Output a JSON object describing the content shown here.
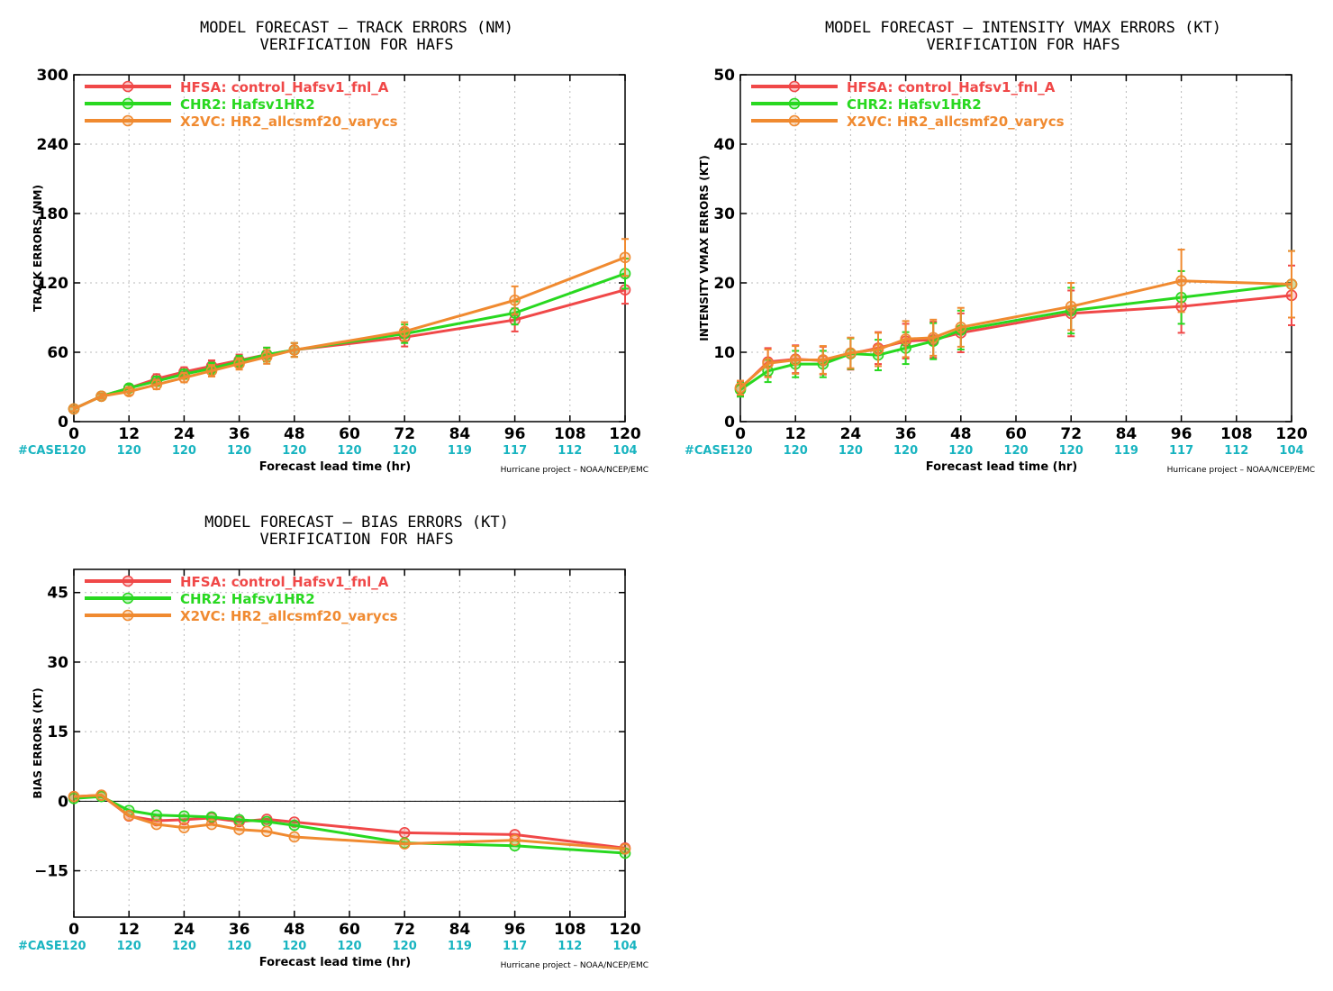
{
  "colors": {
    "HFSA": "#f04848",
    "CHR2": "#28d820",
    "X2VC": "#f08a30",
    "case": "#18b4c0"
  },
  "chart_data": [
    {
      "type": "line",
      "title": "MODEL FORECAST – TRACK ERRORS (NM)",
      "subtitle": "VERIFICATION FOR HAFS",
      "xlabel": "Forecast lead time (hr)",
      "ylabel": "TRACK ERRORS (NM)",
      "xlim": [
        0,
        120
      ],
      "ylim": [
        0,
        300
      ],
      "xticks": [
        0,
        12,
        24,
        36,
        48,
        60,
        72,
        84,
        96,
        108,
        120
      ],
      "yticks": [
        0,
        60,
        120,
        180,
        240,
        300
      ],
      "grid": true,
      "error_bars": true,
      "legend_position": "top-left",
      "case_label": "#CASE",
      "case_counts": [
        "120",
        "120",
        "120",
        "120",
        "120",
        "120",
        "120",
        "119",
        "117",
        "112",
        "104"
      ],
      "credit": "Hurricane project – NOAA/NCEP/EMC",
      "x": [
        0,
        6,
        12,
        18,
        24,
        30,
        36,
        42,
        48,
        72,
        96,
        120
      ],
      "series": [
        {
          "key": "HFSA",
          "name": "HFSA: control_Hafsv1_fnl_A",
          "values": [
            11,
            22,
            29,
            37,
            43,
            48,
            53,
            58,
            62,
            73,
            88,
            114
          ],
          "err": [
            2,
            2,
            3,
            4,
            4,
            5,
            5,
            6,
            6,
            8,
            10,
            12
          ]
        },
        {
          "key": "CHR2",
          "name": "CHR2: Hafsv1HR2",
          "values": [
            11,
            22,
            29,
            35,
            41,
            46,
            52,
            58,
            62,
            76,
            94,
            128
          ],
          "err": [
            2,
            2,
            3,
            4,
            4,
            5,
            5,
            6,
            6,
            8,
            10,
            13
          ]
        },
        {
          "key": "X2VC",
          "name": "X2VC: HR2_allcsmf20_varycs",
          "values": [
            11,
            22,
            26,
            32,
            38,
            44,
            50,
            56,
            62,
            78,
            105,
            142
          ],
          "err": [
            2,
            2,
            3,
            4,
            4,
            5,
            5,
            6,
            6,
            8,
            12,
            16
          ]
        }
      ]
    },
    {
      "type": "line",
      "title": "MODEL FORECAST – INTENSITY VMAX ERRORS (KT)",
      "subtitle": "VERIFICATION FOR HAFS",
      "xlabel": "Forecast lead time (hr)",
      "ylabel": "INTENSITY VMAX ERRORS (KT)",
      "xlim": [
        0,
        120
      ],
      "ylim": [
        0,
        50
      ],
      "xticks": [
        0,
        12,
        24,
        36,
        48,
        60,
        72,
        84,
        96,
        108,
        120
      ],
      "yticks": [
        0,
        10,
        20,
        30,
        40,
        50
      ],
      "grid": true,
      "error_bars": true,
      "legend_position": "top-left",
      "case_label": "#CASE",
      "case_counts": [
        "120",
        "120",
        "120",
        "120",
        "120",
        "120",
        "120",
        "119",
        "117",
        "112",
        "104"
      ],
      "credit": "Hurricane project – NOAA/NCEP/EMC",
      "x": [
        0,
        6,
        12,
        18,
        24,
        30,
        36,
        42,
        48,
        72,
        96,
        120
      ],
      "series": [
        {
          "key": "HFSA",
          "name": "HFSA: control_Hafsv1_fnl_A",
          "values": [
            4.8,
            8.6,
            9.0,
            8.8,
            9.8,
            10.6,
            11.6,
            11.8,
            12.8,
            15.6,
            16.6,
            18.2
          ],
          "err": [
            1.0,
            2.0,
            2.0,
            2.0,
            2.3,
            2.3,
            2.5,
            2.6,
            2.8,
            3.3,
            3.8,
            4.3
          ]
        },
        {
          "key": "CHR2",
          "name": "CHR2: Hafsv1HR2",
          "values": [
            4.6,
            7.3,
            8.3,
            8.3,
            9.8,
            9.6,
            10.6,
            11.6,
            13.2,
            16.0,
            17.9,
            19.8
          ],
          "err": [
            1.0,
            1.6,
            1.9,
            1.9,
            2.2,
            2.2,
            2.3,
            2.6,
            2.8,
            3.3,
            3.8,
            4.8
          ]
        },
        {
          "key": "X2VC",
          "name": "X2VC: HR2_allcsmf20_varycs",
          "values": [
            4.9,
            8.4,
            8.9,
            8.9,
            9.9,
            10.4,
            11.9,
            12.1,
            13.6,
            16.6,
            20.3,
            19.8
          ],
          "err": [
            1.0,
            2.0,
            2.0,
            2.0,
            2.2,
            2.4,
            2.6,
            2.6,
            2.8,
            3.4,
            4.5,
            4.8
          ]
        }
      ]
    },
    {
      "type": "line",
      "title": "MODEL FORECAST – BIAS ERRORS (KT)",
      "subtitle": "VERIFICATION FOR HAFS",
      "xlabel": "Forecast lead time (hr)",
      "ylabel": "BIAS ERRORS (KT)",
      "xlim": [
        0,
        120
      ],
      "ylim": [
        -25,
        50
      ],
      "xticks": [
        0,
        12,
        24,
        36,
        48,
        60,
        72,
        84,
        96,
        108,
        120
      ],
      "yticks": [
        -15,
        0,
        15,
        30,
        45
      ],
      "grid": true,
      "error_bars": false,
      "zero_line": true,
      "legend_position": "top-left",
      "case_label": "#CASE",
      "case_counts": [
        "120",
        "120",
        "120",
        "120",
        "120",
        "120",
        "120",
        "119",
        "117",
        "112",
        "104"
      ],
      "credit": "Hurricane project – NOAA/NCEP/EMC",
      "x": [
        0,
        6,
        12,
        18,
        24,
        30,
        36,
        42,
        48,
        72,
        96,
        120
      ],
      "series": [
        {
          "key": "HFSA",
          "name": "HFSA: control_Hafsv1_fnl_A",
          "values": [
            1.0,
            1.3,
            -3.2,
            -4.2,
            -4.0,
            -3.6,
            -4.4,
            -3.9,
            -4.5,
            -6.8,
            -7.2,
            -10.1
          ]
        },
        {
          "key": "CHR2",
          "name": "CHR2: Hafsv1HR2",
          "values": [
            0.6,
            1.0,
            -2.0,
            -3.0,
            -3.2,
            -3.4,
            -4.0,
            -4.4,
            -5.2,
            -9.0,
            -9.6,
            -11.2
          ]
        },
        {
          "key": "X2VC",
          "name": "X2VC: HR2_allcsmf20_varycs",
          "values": [
            1.0,
            1.3,
            -3.1,
            -5.0,
            -5.7,
            -5.0,
            -6.1,
            -6.5,
            -7.7,
            -9.2,
            -8.4,
            -10.3
          ]
        }
      ]
    }
  ]
}
